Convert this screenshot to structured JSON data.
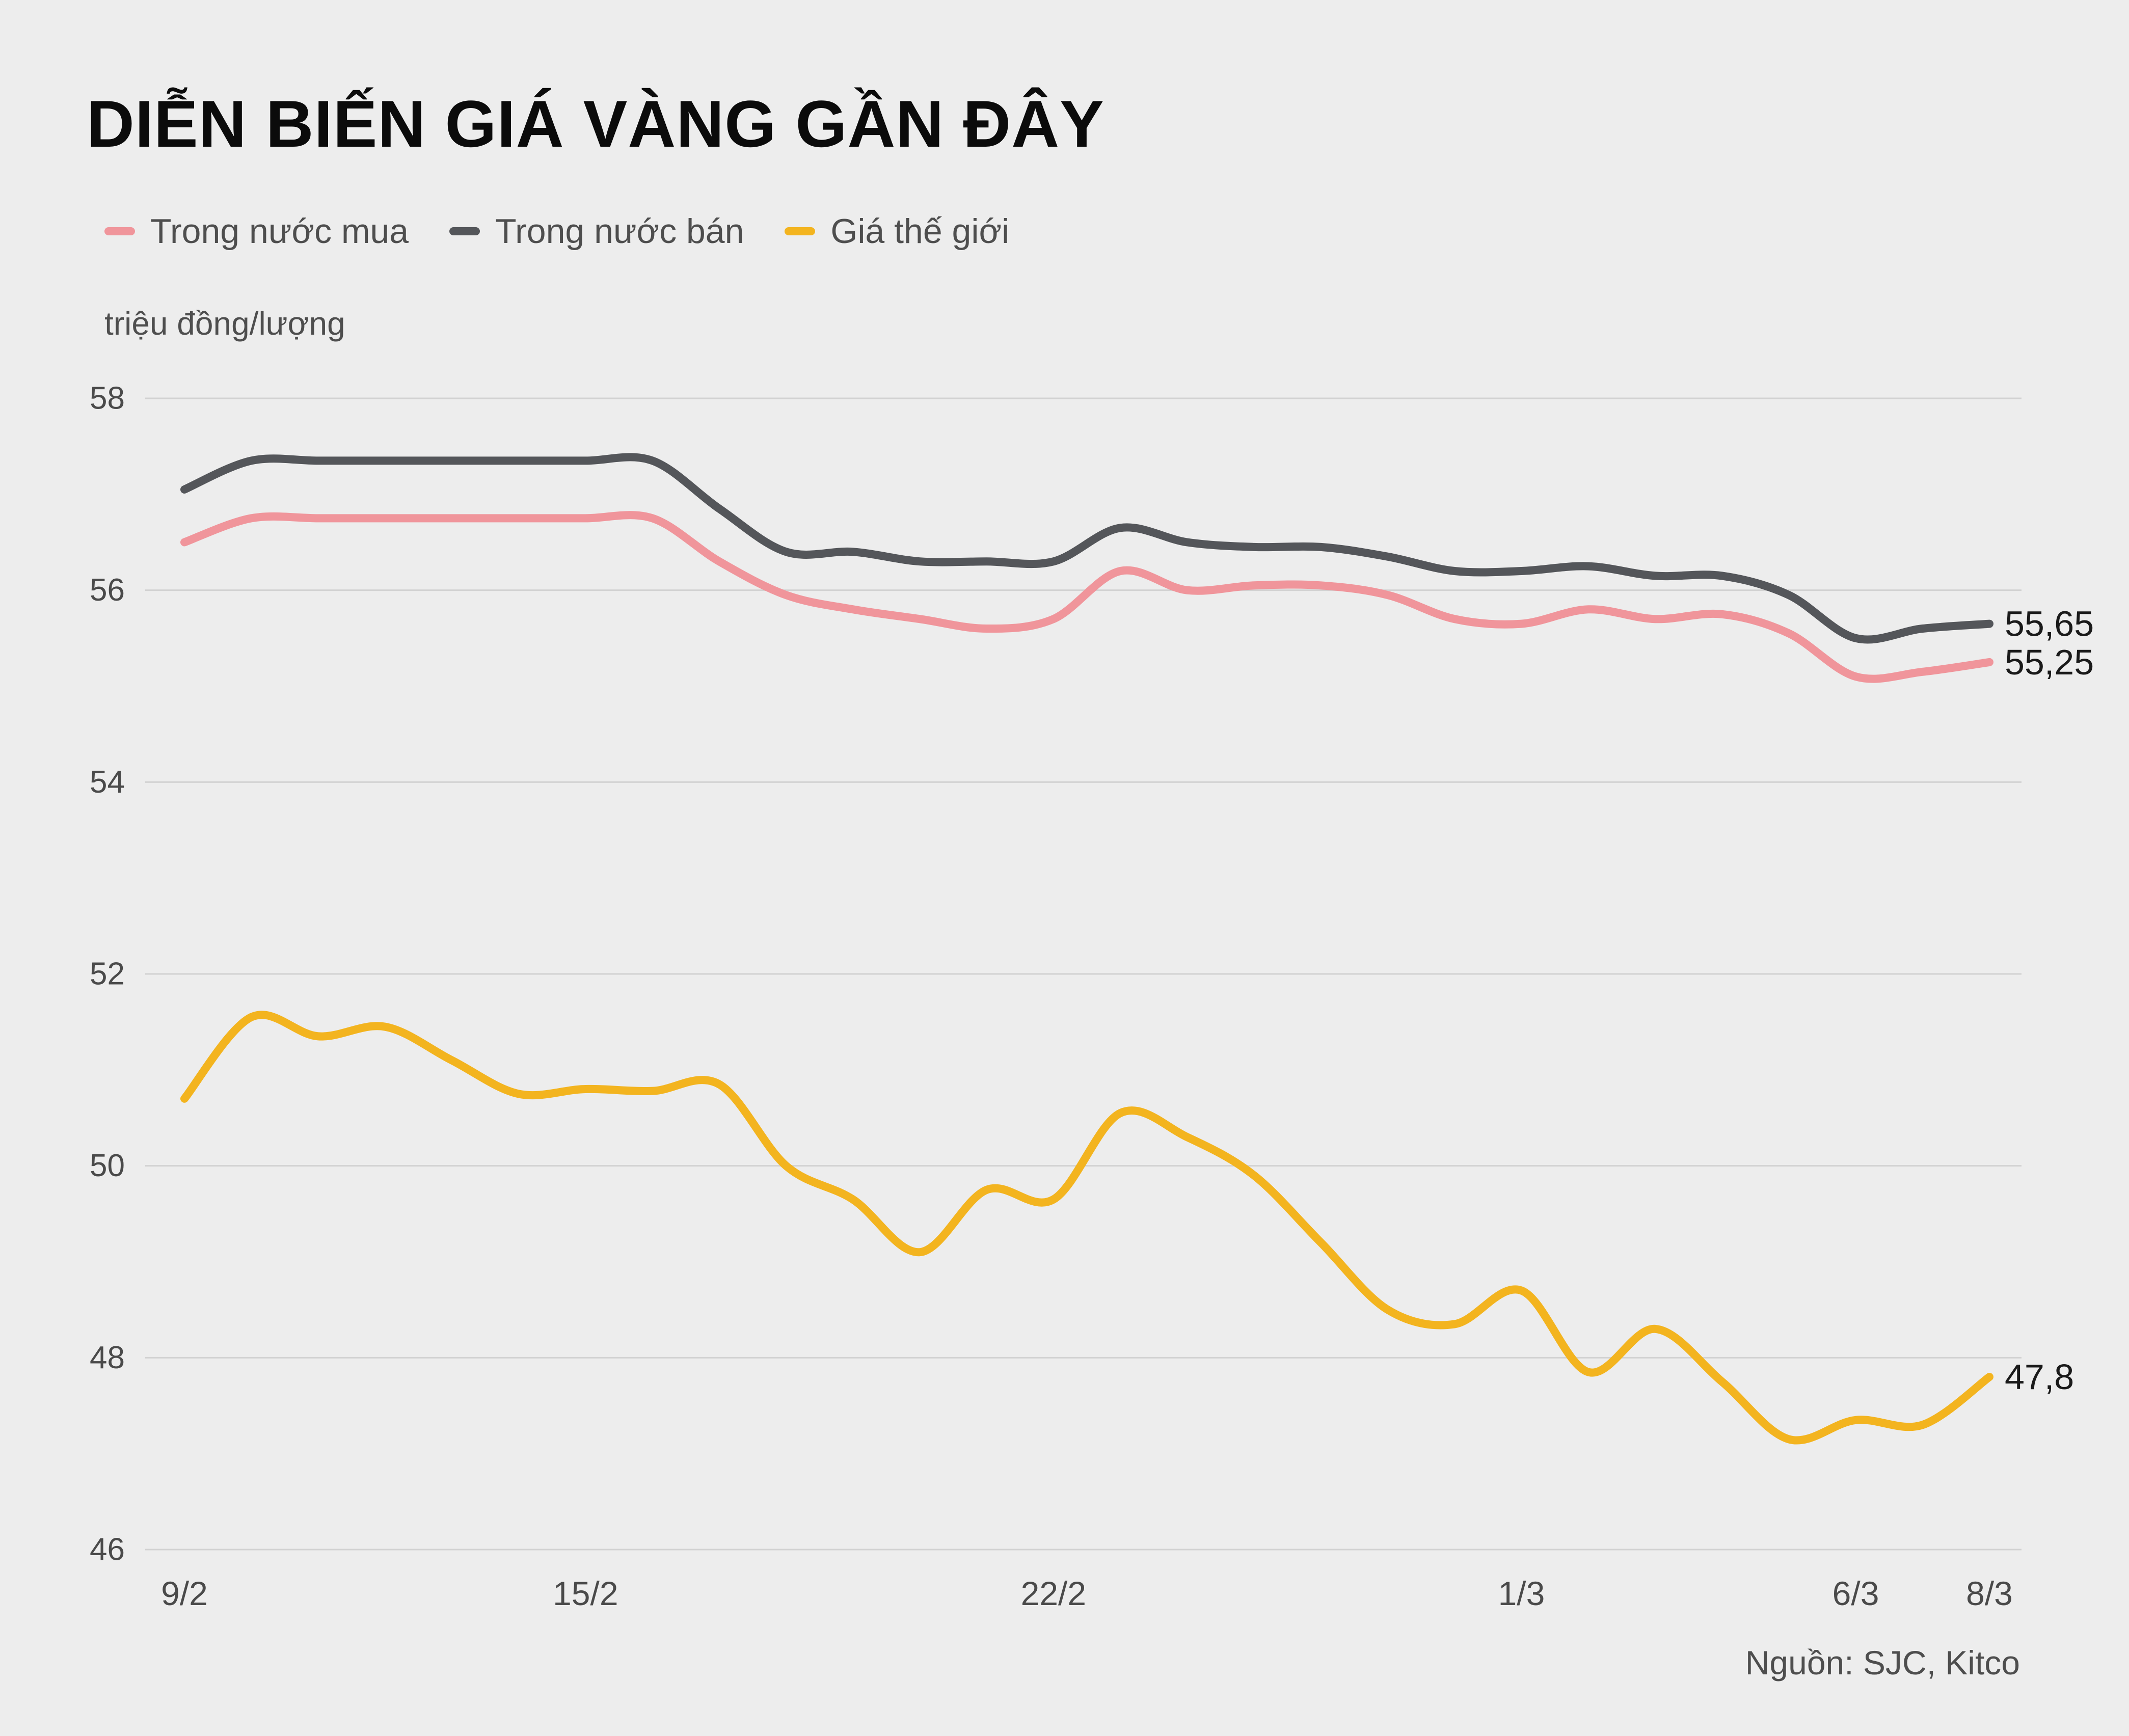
{
  "title": "DIỄN BIẾN GIÁ VÀNG GẦN ĐÂY",
  "source": "Nguồn: SJC, Kitco",
  "colors": {
    "background": "#ededed",
    "grid": "#d2d2d2",
    "axis_text": "#4a4a4a",
    "title_text": "#0b0b0b",
    "end_label_text": "#1a1a1a",
    "buy": "#f0959b",
    "sell": "#54565a",
    "world": "#f3b41f"
  },
  "chart_data": {
    "type": "line",
    "title": "DIỄN BIẾN GIÁ VÀNG GẦN ĐÂY",
    "ylabel": "triệu đồng/lượng",
    "xlabel": "",
    "ylim": [
      46,
      58
    ],
    "yticks": [
      46,
      48,
      50,
      52,
      54,
      56,
      58
    ],
    "grid": "horizontal",
    "legend_position": "top-left",
    "x": [
      "9/2",
      "10/2",
      "11/2",
      "12/2",
      "13/2",
      "14/2",
      "15/2",
      "16/2",
      "17/2",
      "18/2",
      "19/2",
      "20/2",
      "21/2",
      "22/2",
      "23/2",
      "24/2",
      "25/2",
      "26/2",
      "27/2",
      "28/2",
      "1/3",
      "2/3",
      "3/3",
      "4/3",
      "5/3",
      "6/3",
      "7/3",
      "8/3"
    ],
    "xticks": [
      {
        "label": "9/2",
        "index": 0
      },
      {
        "label": "15/2",
        "index": 6
      },
      {
        "label": "22/2",
        "index": 13
      },
      {
        "label": "1/3",
        "index": 20
      },
      {
        "label": "6/3",
        "index": 25
      },
      {
        "label": "8/3",
        "index": 27
      }
    ],
    "series": [
      {
        "id": "buy",
        "name": "Trong nước mua",
        "color_key": "buy",
        "end_label": "55,25",
        "values": [
          56.5,
          56.75,
          56.75,
          56.75,
          56.75,
          56.75,
          56.75,
          56.75,
          56.3,
          55.95,
          55.8,
          55.7,
          55.6,
          55.7,
          56.2,
          56.0,
          56.05,
          56.05,
          55.95,
          55.7,
          55.65,
          55.8,
          55.7,
          55.75,
          55.55,
          55.1,
          55.15,
          55.25
        ]
      },
      {
        "id": "sell",
        "name": "Trong nước bán",
        "color_key": "sell",
        "end_label": "55,65",
        "values": [
          57.05,
          57.35,
          57.35,
          57.35,
          57.35,
          57.35,
          57.35,
          57.35,
          56.85,
          56.4,
          56.4,
          56.3,
          56.3,
          56.3,
          56.65,
          56.5,
          56.45,
          56.45,
          56.35,
          56.2,
          56.2,
          56.25,
          56.15,
          56.15,
          55.95,
          55.5,
          55.6,
          55.65
        ]
      },
      {
        "id": "world",
        "name": "Giá thế giới",
        "color_key": "world",
        "end_label": "47,8",
        "values": [
          50.7,
          51.55,
          51.35,
          51.45,
          51.1,
          50.75,
          50.8,
          50.78,
          50.85,
          50.0,
          49.65,
          49.1,
          49.75,
          49.65,
          50.55,
          50.3,
          49.9,
          49.2,
          48.5,
          48.35,
          48.7,
          47.85,
          48.3,
          47.75,
          47.15,
          47.35,
          47.3,
          47.8
        ]
      }
    ]
  }
}
